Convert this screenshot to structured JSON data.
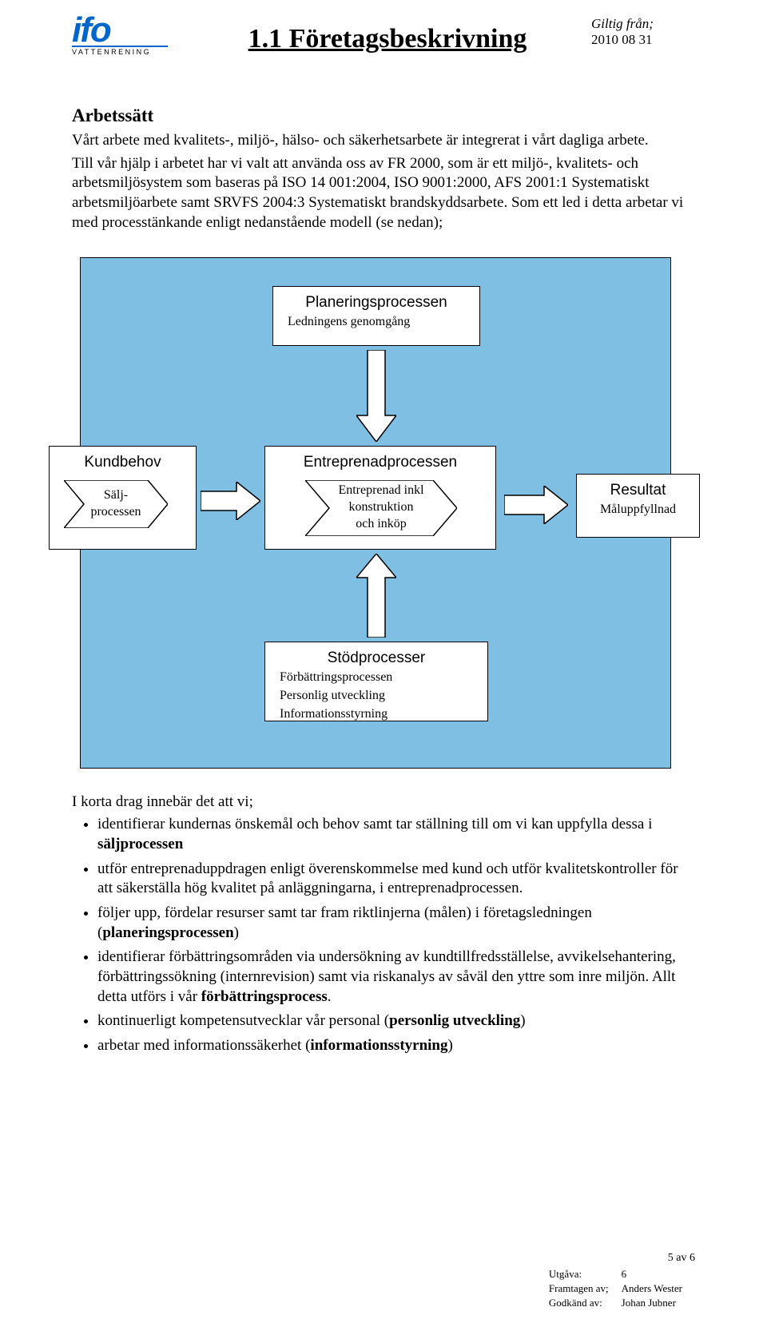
{
  "header": {
    "logo_text": "ifo",
    "logo_sub": "VATTENRENING",
    "title": "1.1 Företagsbeskrivning",
    "valid_from_label": "Giltig från;",
    "valid_from_date": "2010 08 31"
  },
  "section": {
    "heading": "Arbetssätt",
    "intro": "Vårt arbete med kvalitets-, miljö-, hälso- och säkerhetsarbete är integrerat i vårt dagliga arbete.",
    "body": "Till vår hjälp i arbetet har vi valt att använda oss av FR 2000, som är ett miljö-, kvalitets- och arbetsmiljösystem som baseras på ISO 14 001:2004, ISO 9001:2000, AFS 2001:1 Systematiskt arbetsmiljöarbete samt SRVFS 2004:3 Systematiskt brandskyddsarbete. Som ett led i detta arbetar vi med processtänkande enligt nedanstående modell (se nedan);"
  },
  "diagram": {
    "colors": {
      "background": "#7fbfe4",
      "box_fill": "#ffffff",
      "border": "#000000"
    },
    "plan": {
      "title": "Planeringsprocessen",
      "sub": "Ledningens genomgång"
    },
    "kund": {
      "title": "Kundbehov",
      "sub": "Sälj-\nprocessen"
    },
    "entre": {
      "title": "Entreprenadprocessen",
      "sub": "Entreprenad inkl\nkonstruktion\noch inköp"
    },
    "result": {
      "title": "Resultat",
      "sub": "Måluppfyllnad"
    },
    "stod": {
      "title": "Stödprocesser",
      "lines": [
        "Förbättringsprocessen",
        "Personlig utveckling",
        "Informationsstyrning"
      ]
    }
  },
  "after": {
    "lead": "I korta drag innebär det att vi;",
    "bullets": [
      "identifierar kundernas önskemål och behov samt tar ställning till om vi kan uppfylla dessa i <b>säljprocessen</b>",
      "utför entreprenaduppdragen enligt överenskommelse med kund och utför kvalitetskontroller för att säkerställa hög kvalitet på anläggningarna, i entreprenadprocessen.",
      "följer upp, fördelar resurser samt tar fram riktlinjerna (målen) i företagsledningen (<b>planeringsprocessen</b>)",
      "identifierar förbättringsområden via undersökning av kundtillfredsställelse, avvikelsehantering, förbättringssökning (internrevision) samt via riskanalys av såväl den yttre som inre miljön. Allt detta utförs i vår <b>förbättringsprocess</b>.",
      "kontinuerligt kompetensutvecklar vår personal (<b>personlig utveckling</b>)",
      "arbetar med informationssäkerhet (<b>informationsstyrning</b>)"
    ]
  },
  "footer": {
    "page_num": "5 av 6",
    "rows": [
      [
        "Utgåva:",
        "6"
      ],
      [
        "Framtagen av;",
        "Anders Wester"
      ],
      [
        "Godkänd av:",
        "Johan Jubner"
      ]
    ]
  }
}
